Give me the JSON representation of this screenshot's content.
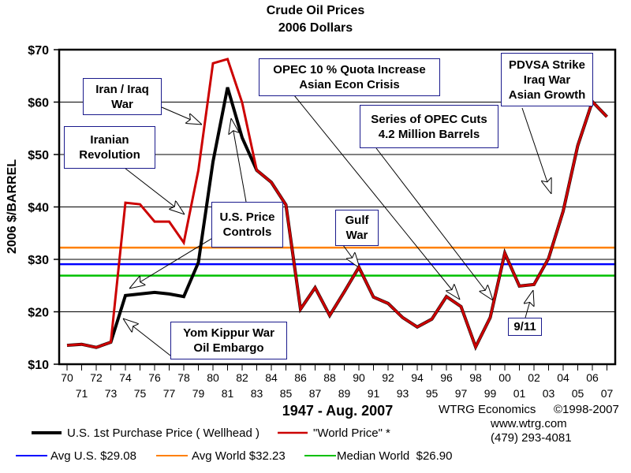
{
  "chart_data": {
    "type": "line",
    "title": "Crude Oil Prices",
    "subtitle": "2006 Dollars",
    "xlabel": "1947 - Aug. 2007",
    "ylabel": "2006 $/BARREL",
    "ylim": [
      10,
      70
    ],
    "yticks": [
      "$10",
      "$20",
      "$30",
      "$40",
      "$50",
      "$60",
      "$70"
    ],
    "grid": "horizontal",
    "x": [
      "70",
      "71",
      "72",
      "73",
      "74",
      "75",
      "76",
      "77",
      "78",
      "79",
      "80",
      "81",
      "82",
      "83",
      "84",
      "85",
      "86",
      "87",
      "88",
      "89",
      "90",
      "91",
      "92",
      "93",
      "94",
      "95",
      "96",
      "97",
      "98",
      "99",
      "00",
      "01",
      "02",
      "03",
      "04",
      "05",
      "06",
      "07"
    ],
    "series": [
      {
        "name": "\"World Price\" *",
        "color": "#cc0000",
        "values": [
          13.6,
          13.8,
          13.2,
          14.2,
          40.8,
          40.5,
          37.2,
          37.2,
          33.2,
          47,
          67.4,
          68.2,
          59.9,
          47,
          44.7,
          40.4,
          20.5,
          24.6,
          19.3,
          23.8,
          28.5,
          22.8,
          21.6,
          18.9,
          17.1,
          18.6,
          22.9,
          21.0,
          13.3,
          18.9,
          31.2,
          24.9,
          25.2,
          30.2,
          39.2,
          51.7,
          60.1,
          57.2
        ]
      },
      {
        "name": "U.S. 1st Purchase Price ( Wellhead )",
        "color": "#000000",
        "values": [
          13.6,
          13.8,
          13.2,
          14.2,
          23.1,
          23.4,
          23.7,
          23.4,
          22.9,
          29.4,
          48.6,
          62.8,
          53.2,
          47,
          44.7,
          40.4,
          20.5,
          24.6,
          19.3,
          23.8,
          28.5,
          22.8,
          21.6,
          18.9,
          17.1,
          18.6,
          22.9,
          21.0,
          13.3,
          18.9,
          31.2,
          24.9,
          25.2,
          30.2,
          39.2,
          51.7,
          60.1,
          57.2
        ]
      }
    ],
    "reference_lines": [
      {
        "name": "Avg U.S. $29.08",
        "value": 29.08,
        "color": "#0000ff"
      },
      {
        "name": "Avg World $32.23",
        "value": 32.23,
        "color": "#ff8000"
      },
      {
        "name": "Median World  $26.90",
        "value": 26.9,
        "color": "#00c000"
      }
    ],
    "annotations": [
      {
        "id": "iran-iraq",
        "text": [
          "Iran / Iraq",
          "War"
        ]
      },
      {
        "id": "iranian-rev",
        "text": [
          "Iranian",
          "Revolution"
        ]
      },
      {
        "id": "price-controls",
        "text": [
          "U.S. Price",
          "Controls"
        ]
      },
      {
        "id": "yom-kippur",
        "text": [
          "Yom Kippur War",
          "Oil Embargo"
        ]
      },
      {
        "id": "opec-quota",
        "text": [
          "OPEC 10 % Quota Increase",
          "Asian Econ Crisis"
        ]
      },
      {
        "id": "opec-cuts",
        "text": [
          "Series of OPEC Cuts",
          "4.2 Million Barrels"
        ]
      },
      {
        "id": "gulf-war",
        "text": [
          "Gulf",
          "War"
        ]
      },
      {
        "id": "pdvsa",
        "text": [
          "PDVSA Strike",
          "Iraq War",
          "Asian Growth"
        ]
      },
      {
        "id": "911",
        "text": [
          "9/11"
        ]
      }
    ],
    "legend_position": "bottom"
  },
  "credits": {
    "company": "WTRG Economics",
    "copyright": "©1998-2007",
    "url": "www.wtrg.com",
    "phone": "(479) 293-4081"
  }
}
